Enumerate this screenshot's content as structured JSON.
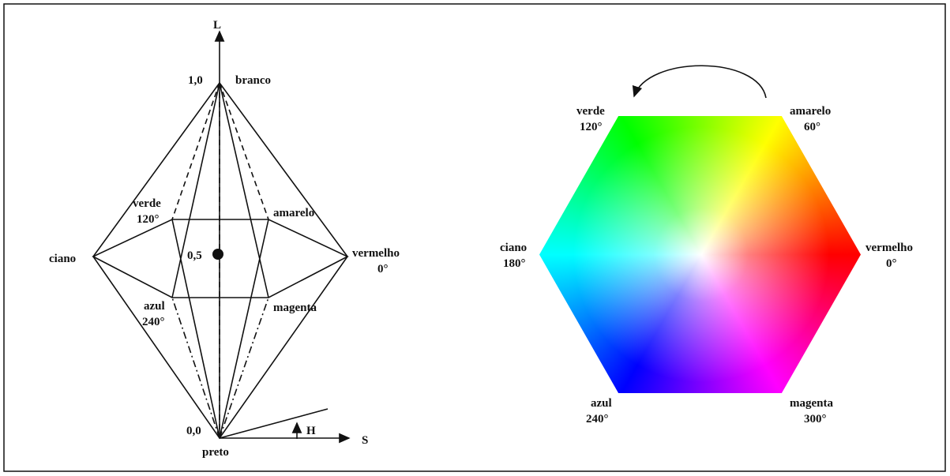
{
  "left_diagram": {
    "axes": {
      "l": "L",
      "s": "S",
      "h": "H"
    },
    "levels": {
      "top": "1,0",
      "middle": "0,5",
      "bottom": "0,0"
    },
    "white": "branco",
    "black": "preto",
    "vertices": [
      {
        "name": "verde",
        "angle": "120°"
      },
      {
        "name": "amarelo"
      },
      {
        "name": "vermelho",
        "angle": "0°"
      },
      {
        "name": "ciano"
      },
      {
        "name": "azul",
        "angle": "240°"
      },
      {
        "name": "magenta"
      }
    ]
  },
  "right_diagram": {
    "vertices": [
      {
        "name": "verde",
        "angle": "120°"
      },
      {
        "name": "amarelo",
        "angle": "60°"
      },
      {
        "name": "vermelho",
        "angle": "0°"
      },
      {
        "name": "magenta",
        "angle": "300°"
      },
      {
        "name": "azul",
        "angle": "240°"
      },
      {
        "name": "ciano",
        "angle": "180°"
      }
    ]
  }
}
